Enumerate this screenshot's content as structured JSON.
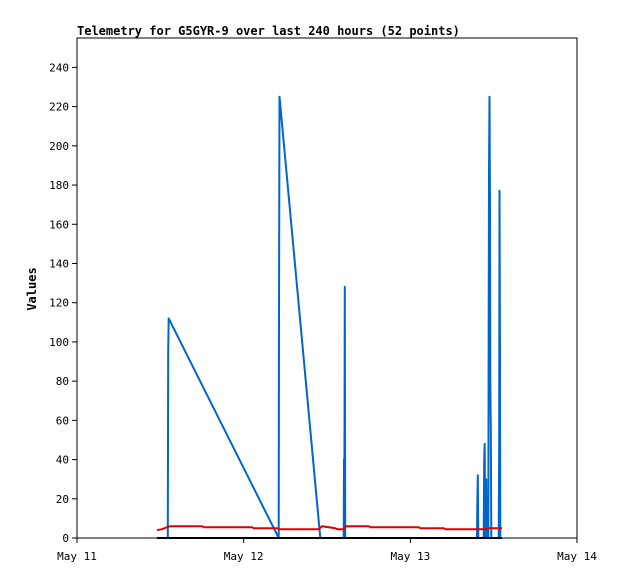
{
  "chart_data": {
    "type": "line",
    "title": "Telemetry for G5GYR-9 over last 240 hours (52 points)",
    "ylabel": "Values",
    "xlabel": "",
    "x_ticks": [
      "May 11",
      "May 12",
      "May 13",
      "May 14"
    ],
    "xlim": [
      0,
      3
    ],
    "ylim": [
      0,
      255
    ],
    "y_ticks": [
      0,
      20,
      40,
      60,
      80,
      100,
      120,
      140,
      160,
      180,
      200,
      220,
      240
    ],
    "grid": false,
    "legend": "none",
    "series": [
      {
        "color": "#0066cc",
        "points": [
          [
            0.545,
            0
          ],
          [
            0.547,
            96
          ],
          [
            0.55,
            112
          ],
          [
            1.21,
            0
          ],
          [
            1.212,
            112
          ],
          [
            1.215,
            225
          ],
          [
            1.46,
            0
          ],
          [
            1.6,
            0
          ],
          [
            1.602,
            40
          ],
          [
            1.604,
            0
          ],
          [
            1.607,
            128
          ],
          [
            1.609,
            0
          ],
          [
            2.4,
            0
          ],
          [
            2.402,
            17
          ],
          [
            2.405,
            32
          ],
          [
            2.408,
            0
          ],
          [
            2.44,
            0
          ],
          [
            2.443,
            40
          ],
          [
            2.446,
            48
          ],
          [
            2.449,
            0
          ],
          [
            2.455,
            30
          ],
          [
            2.458,
            0
          ],
          [
            2.468,
            0
          ],
          [
            2.47,
            112
          ],
          [
            2.472,
            187
          ],
          [
            2.475,
            225
          ],
          [
            2.478,
            168
          ],
          [
            2.48,
            80
          ],
          [
            2.483,
            56
          ],
          [
            2.486,
            0
          ],
          [
            2.53,
            0
          ],
          [
            2.533,
            48
          ],
          [
            2.535,
            177
          ],
          [
            2.538,
            88
          ],
          [
            2.54,
            0
          ]
        ]
      },
      {
        "color": "#dd0000",
        "points": [
          [
            0.48,
            4
          ],
          [
            0.51,
            4.5
          ],
          [
            0.54,
            5.5
          ],
          [
            0.56,
            6
          ],
          [
            0.75,
            6
          ],
          [
            0.76,
            5.5
          ],
          [
            1.05,
            5.5
          ],
          [
            1.06,
            5
          ],
          [
            1.2,
            5
          ],
          [
            1.21,
            4.5
          ],
          [
            1.45,
            4.5
          ],
          [
            1.47,
            6
          ],
          [
            1.55,
            5
          ],
          [
            1.56,
            4.5
          ],
          [
            1.6,
            4.5
          ],
          [
            1.61,
            6
          ],
          [
            1.75,
            6
          ],
          [
            1.76,
            5.5
          ],
          [
            2.05,
            5.5
          ],
          [
            2.06,
            5
          ],
          [
            2.2,
            5
          ],
          [
            2.21,
            4.5
          ],
          [
            2.45,
            4.5
          ],
          [
            2.47,
            5
          ],
          [
            2.5,
            5
          ],
          [
            2.55,
            5
          ]
        ]
      },
      {
        "color": "#000000",
        "points": [
          [
            0.48,
            0
          ],
          [
            2.55,
            0
          ]
        ]
      }
    ]
  }
}
